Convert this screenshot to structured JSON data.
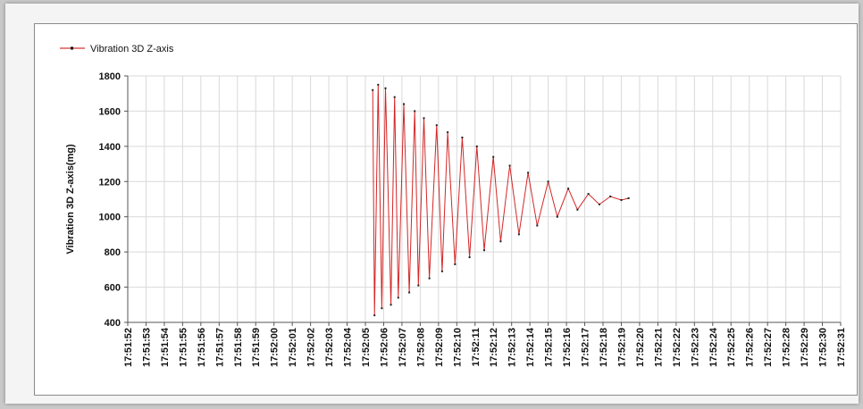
{
  "chart_data": {
    "type": "line",
    "ylabel": "Vibration 3D Z-axis(mg)",
    "xlabel": "",
    "legend": {
      "position": "top-left"
    },
    "grid": true,
    "ylim": [
      400,
      1800
    ],
    "yticks": [
      400,
      600,
      800,
      1000,
      1200,
      1400,
      1600,
      1800
    ],
    "xticks": [
      "17:51:52",
      "17:51:53",
      "17:51:54",
      "17:51:55",
      "17:51:56",
      "17:51:57",
      "17:51:58",
      "17:51:59",
      "17:52:00",
      "17:52:01",
      "17:52:02",
      "17:52:03",
      "17:52:04",
      "17:52:05",
      "17:52:06",
      "17:52:07",
      "17:52:08",
      "17:52:09",
      "17:52:10",
      "17:52:11",
      "17:52:12",
      "17:52:13",
      "17:52:14",
      "17:52:15",
      "17:52:16",
      "17:52:17",
      "17:52:18",
      "17:52:19",
      "17:52:20",
      "17:52:21",
      "17:52:22",
      "17:52:23",
      "17:52:24",
      "17:52:25",
      "17:52:26",
      "17:52:27",
      "17:52:28",
      "17:52:29",
      "17:52:30",
      "17:52:31"
    ],
    "series": [
      {
        "name": "Vibration 3D Z-axis",
        "color": "#cc0000",
        "x": [
          "17:52:05.4",
          "17:52:05.5",
          "17:52:05.7",
          "17:52:05.9",
          "17:52:06.1",
          "17:52:06.4",
          "17:52:06.6",
          "17:52:06.8",
          "17:52:07.1",
          "17:52:07.4",
          "17:52:07.7",
          "17:52:07.9",
          "17:52:08.2",
          "17:52:08.5",
          "17:52:08.9",
          "17:52:09.2",
          "17:52:09.5",
          "17:52:09.9",
          "17:52:10.3",
          "17:52:10.7",
          "17:52:11.1",
          "17:52:11.5",
          "17:52:12.0",
          "17:52:12.4",
          "17:52:12.9",
          "17:52:13.4",
          "17:52:13.9",
          "17:52:14.4",
          "17:52:15.0",
          "17:52:15.5",
          "17:52:16.1",
          "17:52:16.6",
          "17:52:17.2",
          "17:52:17.8",
          "17:52:18.4",
          "17:52:19.0",
          "17:52:19.4"
        ],
        "values": [
          1720,
          440,
          1750,
          480,
          1730,
          500,
          1680,
          540,
          1640,
          570,
          1600,
          610,
          1560,
          650,
          1520,
          690,
          1480,
          730,
          1450,
          770,
          1400,
          810,
          1340,
          860,
          1290,
          900,
          1250,
          950,
          1200,
          1000,
          1160,
          1040,
          1130,
          1070,
          1115,
          1095,
          1105
        ]
      }
    ]
  }
}
